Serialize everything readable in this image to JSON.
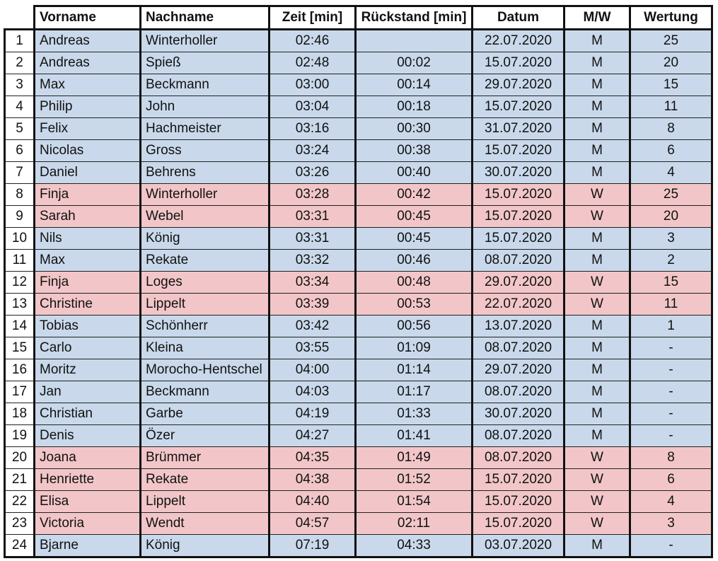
{
  "headers": [
    "",
    "Vorname",
    "Nachname",
    "Zeit [min]",
    "Rückstand [min]",
    "Datum",
    "M/W",
    "Wertung"
  ],
  "rows": [
    [
      "1",
      "Andreas",
      "Winterholler",
      "02:46",
      "",
      "22.07.2020",
      "M",
      "25"
    ],
    [
      "2",
      "Andreas",
      "Spieß",
      "02:48",
      "00:02",
      "15.07.2020",
      "M",
      "20"
    ],
    [
      "3",
      "Max",
      "Beckmann",
      "03:00",
      "00:14",
      "29.07.2020",
      "M",
      "15"
    ],
    [
      "4",
      "Philip",
      "John",
      "03:04",
      "00:18",
      "15.07.2020",
      "M",
      "11"
    ],
    [
      "5",
      "Felix",
      "Hachmeister",
      "03:16",
      "00:30",
      "31.07.2020",
      "M",
      "8"
    ],
    [
      "6",
      "Nicolas",
      "Gross",
      "03:24",
      "00:38",
      "15.07.2020",
      "M",
      "6"
    ],
    [
      "7",
      "Daniel",
      "Behrens",
      "03:26",
      "00:40",
      "30.07.2020",
      "M",
      "4"
    ],
    [
      "8",
      "Finja",
      "Winterholler",
      "03:28",
      "00:42",
      "15.07.2020",
      "W",
      "25"
    ],
    [
      "9",
      "Sarah",
      "Webel",
      "03:31",
      "00:45",
      "15.07.2020",
      "W",
      "20"
    ],
    [
      "10",
      "Nils",
      "König",
      "03:31",
      "00:45",
      "15.07.2020",
      "M",
      "3"
    ],
    [
      "11",
      "Max",
      "Rekate",
      "03:32",
      "00:46",
      "08.07.2020",
      "M",
      "2"
    ],
    [
      "12",
      "Finja",
      "Loges",
      "03:34",
      "00:48",
      "29.07.2020",
      "W",
      "15"
    ],
    [
      "13",
      "Christine",
      "Lippelt",
      "03:39",
      "00:53",
      "22.07.2020",
      "W",
      "11"
    ],
    [
      "14",
      "Tobias",
      "Schönherr",
      "03:42",
      "00:56",
      "13.07.2020",
      "M",
      "1"
    ],
    [
      "15",
      "Carlo",
      "Kleina",
      "03:55",
      "01:09",
      "08.07.2020",
      "M",
      "-"
    ],
    [
      "16",
      "Moritz",
      "Morocho-Hentschel",
      "04:00",
      "01:14",
      "29.07.2020",
      "M",
      "-"
    ],
    [
      "17",
      "Jan",
      "Beckmann",
      "04:03",
      "01:17",
      "08.07.2020",
      "M",
      "-"
    ],
    [
      "18",
      "Christian",
      "Garbe",
      "04:19",
      "01:33",
      "30.07.2020",
      "M",
      "-"
    ],
    [
      "19",
      "Denis",
      "Özer",
      "04:27",
      "01:41",
      "08.07.2020",
      "M",
      "-"
    ],
    [
      "20",
      "Joana",
      "Brümmer",
      "04:35",
      "01:49",
      "08.07.2020",
      "W",
      "8"
    ],
    [
      "21",
      "Henriette",
      "Rekate",
      "04:38",
      "01:52",
      "15.07.2020",
      "W",
      "6"
    ],
    [
      "22",
      "Elisa",
      "Lippelt",
      "04:40",
      "01:54",
      "15.07.2020",
      "W",
      "4"
    ],
    [
      "23",
      "Victoria",
      "Wendt",
      "04:57",
      "02:11",
      "15.07.2020",
      "W",
      "3"
    ],
    [
      "24",
      "Bjarne",
      "König",
      "07:19",
      "04:33",
      "03.07.2020",
      "M",
      "-"
    ]
  ],
  "colors": {
    "male_row": "#c9d9eb",
    "female_row": "#f2c6c8"
  }
}
